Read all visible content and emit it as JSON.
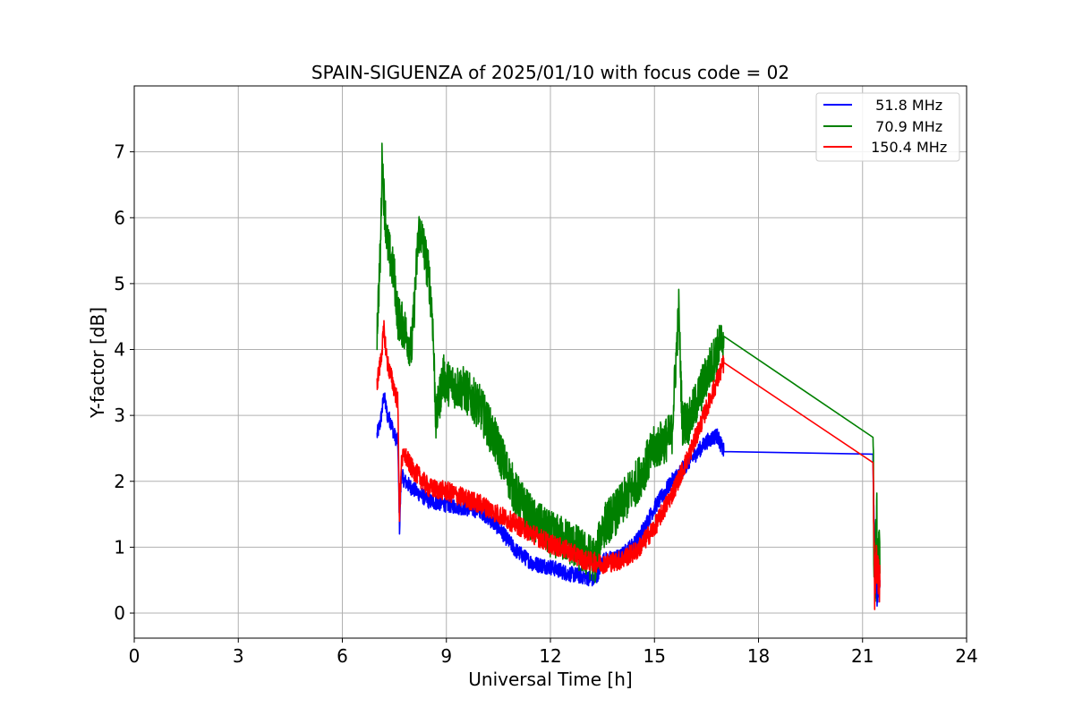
{
  "chart_data": {
    "type": "line",
    "title": "SPAIN-SIGUENZA of 2025/01/10 with focus code = 02",
    "xlabel": "Universal Time [h]",
    "ylabel": "Y-factor [dB]",
    "xlim": [
      0,
      24
    ],
    "ylim": [
      -0.38,
      8.0
    ],
    "xticks": [
      0,
      3,
      6,
      9,
      12,
      15,
      18,
      21,
      24
    ],
    "yticks": [
      0,
      1,
      2,
      3,
      4,
      5,
      6,
      7
    ],
    "grid": true,
    "legend_position": "top-right",
    "series": [
      {
        "name": "  51.8 MHz",
        "color": "#0000ff",
        "x": [
          7.0,
          7.1,
          7.2,
          7.3,
          7.4,
          7.5,
          7.6,
          7.65,
          7.7,
          7.8,
          8.0,
          8.5,
          9.0,
          9.5,
          10.0,
          10.5,
          11.0,
          11.5,
          12.0,
          12.5,
          13.0,
          13.3,
          13.5,
          14.0,
          14.5,
          15.0,
          15.5,
          16.0,
          16.5,
          16.8,
          17.0,
          21.3,
          21.35,
          21.4,
          21.5
        ],
        "y": [
          2.7,
          2.9,
          3.3,
          3.0,
          2.9,
          2.7,
          2.6,
          1.3,
          2.1,
          2.0,
          1.9,
          1.7,
          1.65,
          1.6,
          1.55,
          1.3,
          0.95,
          0.75,
          0.7,
          0.6,
          0.55,
          0.5,
          0.8,
          0.85,
          1.1,
          1.6,
          2.0,
          2.3,
          2.6,
          2.7,
          2.45,
          2.35,
          0.6,
          0.3,
          0.5
        ],
        "noise": 0.12
      },
      {
        "name": "  70.9 MHz",
        "color": "#008000",
        "x": [
          7.0,
          7.1,
          7.15,
          7.2,
          7.3,
          7.5,
          7.6,
          7.8,
          8.0,
          8.2,
          8.3,
          8.5,
          8.6,
          8.7,
          8.9,
          9.0,
          9.5,
          10.0,
          10.5,
          11.0,
          11.5,
          12.0,
          12.5,
          13.0,
          13.3,
          13.5,
          14.0,
          14.5,
          15.0,
          15.5,
          15.7,
          15.8,
          16.0,
          16.5,
          17.0,
          21.3,
          21.35,
          21.4,
          21.5
        ],
        "y": [
          4.3,
          5.5,
          7.0,
          6.3,
          5.6,
          5.1,
          4.5,
          4.3,
          4.0,
          5.8,
          5.7,
          5.1,
          4.5,
          2.9,
          3.6,
          3.5,
          3.4,
          3.1,
          2.5,
          1.8,
          1.4,
          1.2,
          1.1,
          0.9,
          0.8,
          1.3,
          1.6,
          2.0,
          2.5,
          2.7,
          4.6,
          2.9,
          2.9,
          3.6,
          4.2,
          2.33,
          0.3,
          1.2,
          0.6
        ],
        "noise": 0.35
      },
      {
        "name": " 150.4 MHz",
        "color": "#ff0000",
        "x": [
          7.0,
          7.1,
          7.2,
          7.3,
          7.4,
          7.5,
          7.6,
          7.65,
          7.7,
          7.8,
          8.0,
          8.5,
          9.0,
          9.5,
          10.0,
          10.5,
          11.0,
          11.5,
          12.0,
          12.5,
          13.0,
          13.5,
          14.0,
          14.5,
          15.0,
          15.5,
          16.0,
          16.5,
          17.0,
          21.3,
          21.35,
          21.4,
          21.5
        ],
        "y": [
          3.5,
          3.8,
          4.3,
          3.8,
          3.6,
          3.4,
          3.2,
          1.4,
          2.3,
          2.4,
          2.2,
          1.9,
          1.85,
          1.75,
          1.65,
          1.5,
          1.35,
          1.2,
          1.05,
          0.95,
          0.8,
          0.75,
          0.8,
          0.95,
          1.3,
          1.8,
          2.4,
          3.1,
          3.8,
          2.25,
          0.3,
          0.8,
          0.4
        ],
        "noise": 0.15
      }
    ]
  }
}
